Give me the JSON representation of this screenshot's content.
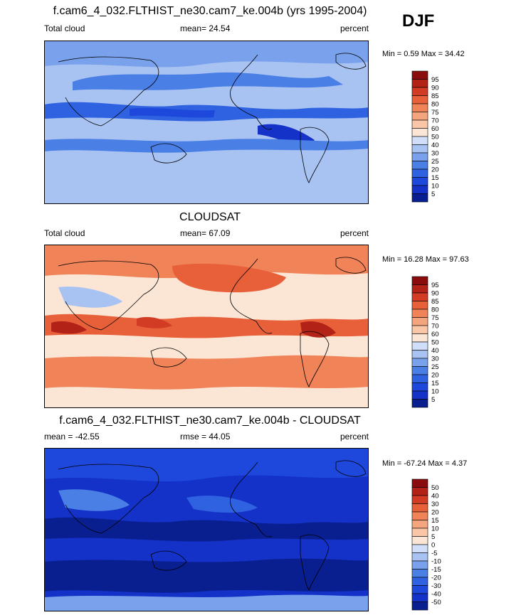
{
  "season": "DJF",
  "chart_data": [
    {
      "type": "heatmap",
      "title": "f.cam6_4_032.FLTHIST_ne30.cam7_ke.004b (yrs 1995-2004)",
      "variable": "Total cloud",
      "stat_label": "mean=  24.54",
      "mean": 24.54,
      "units": "percent",
      "min_max_label": "Min =   0.59 Max =  34.42",
      "min": 0.59,
      "max": 34.42,
      "colorbar_levels": [
        "5",
        "10",
        "15",
        "20",
        "25",
        "30",
        "40",
        "50",
        "60",
        "70",
        "75",
        "80",
        "85",
        "90",
        "95"
      ],
      "colorbar_colors": [
        "#0a1f8f",
        "#1432c8",
        "#1e48dc",
        "#2f62e0",
        "#4a7fe6",
        "#7aa2ec",
        "#a8c3f2",
        "#d0defa",
        "#fbe6d6",
        "#f9c6a7",
        "#f5a57e",
        "#f08358",
        "#e8603a",
        "#d23c24",
        "#b32216",
        "#8b0c0c"
      ]
    },
    {
      "type": "heatmap",
      "title": "CLOUDSAT",
      "variable": "Total cloud",
      "stat_label": "mean=  67.09",
      "mean": 67.09,
      "units": "percent",
      "min_max_label": "Min =  16.28 Max =  97.63",
      "min": 16.28,
      "max": 97.63,
      "colorbar_levels": [
        "5",
        "10",
        "15",
        "20",
        "25",
        "30",
        "40",
        "50",
        "60",
        "70",
        "75",
        "80",
        "85",
        "90",
        "95"
      ],
      "colorbar_colors": [
        "#0a1f8f",
        "#1432c8",
        "#1e48dc",
        "#2f62e0",
        "#4a7fe6",
        "#7aa2ec",
        "#a8c3f2",
        "#d0defa",
        "#fbe6d6",
        "#f9c6a7",
        "#f5a57e",
        "#f08358",
        "#e8603a",
        "#d23c24",
        "#b32216",
        "#8b0c0c"
      ]
    },
    {
      "type": "heatmap",
      "title": "f.cam6_4_032.FLTHIST_ne30.cam7_ke.004b - CLOUDSAT",
      "variable": "mean = -42.55",
      "stat_label": "rmse =  44.05",
      "mean": -42.55,
      "rmse": 44.05,
      "units": "percent",
      "min_max_label": "Min = -67.24 Max =   4.37",
      "min": -67.24,
      "max": 4.37,
      "colorbar_levels": [
        "-50",
        "-40",
        "-30",
        "-20",
        "-15",
        "-10",
        "-5",
        "0",
        "5",
        "10",
        "15",
        "20",
        "30",
        "40",
        "50"
      ],
      "colorbar_colors": [
        "#0a1f8f",
        "#1432c8",
        "#1e48dc",
        "#2f62e0",
        "#4a7fe6",
        "#7aa2ec",
        "#a8c3f2",
        "#d0defa",
        "#fbe6d6",
        "#f9c6a7",
        "#f5a57e",
        "#f08358",
        "#e8603a",
        "#d23c24",
        "#b32216",
        "#8b0c0c"
      ]
    }
  ]
}
